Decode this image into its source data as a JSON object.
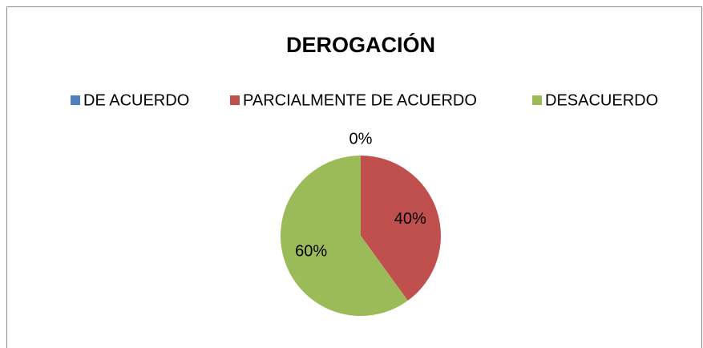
{
  "chart_data": {
    "type": "pie",
    "title": "DEROGACIÓN",
    "categories": [
      "DE ACUERDO",
      "PARCIALMENTE DE ACUERDO",
      "DESACUERDO"
    ],
    "values": [
      0,
      40,
      60
    ],
    "value_labels": [
      "0%",
      "40%",
      "60%"
    ],
    "colors": [
      "#4f81bd",
      "#c0504d",
      "#9bbb59"
    ],
    "legend": "top"
  }
}
